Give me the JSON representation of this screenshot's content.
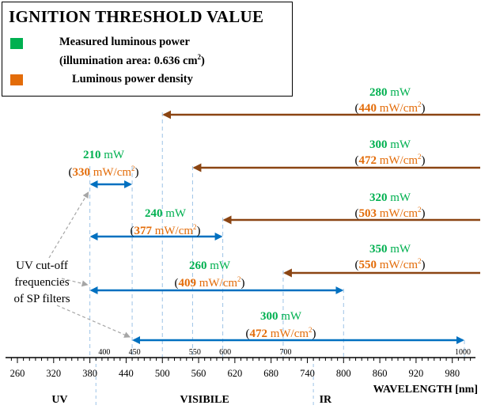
{
  "legend": {
    "title": "IGNITION THRESHOLD VALUE",
    "items": [
      {
        "label_line1": "Measured luminous power",
        "label_line2_prefix": "(illumination area: 0.636 cm",
        "label_line2_suffix": ")",
        "sup": "2",
        "color": "#00b050"
      },
      {
        "label_line1": "Luminous power density",
        "color": "#e36c09"
      }
    ]
  },
  "colors": {
    "power": "#00b050",
    "density": "#e36c09",
    "brown_arrow": "#8b4513",
    "blue_arrow": "#0070c0",
    "dashed": "#9dc3e6"
  },
  "annotation": [
    "UV cut-off",
    "frequencies",
    "of SP filters"
  ],
  "axis": {
    "title": "WAVELENGTH",
    "unit": "[nm]",
    "min": 260,
    "max": 1000,
    "ticks": [
      260,
      320,
      380,
      440,
      500,
      560,
      620,
      680,
      740,
      800,
      860,
      920,
      980
    ],
    "upper_labels": [
      400,
      450,
      550,
      600,
      700,
      1000
    ],
    "regions": [
      {
        "name": "UV",
        "center": 330
      },
      {
        "name": "VISIBILE",
        "center": 570
      },
      {
        "name": "IR",
        "center": 770
      }
    ],
    "boundaries": [
      390,
      750
    ]
  },
  "chart_data": {
    "type": "range-diagram",
    "title": "IGNITION THRESHOLD VALUE",
    "xlabel": "WAVELENGTH [nm]",
    "xlim": [
      260,
      1000
    ],
    "density_unit": "mW/cm",
    "density_unit_sup": "2",
    "long_pass": [
      {
        "start": 500,
        "power": 280,
        "power_unit": "mW",
        "density": 440
      },
      {
        "start": 550,
        "power": 300,
        "power_unit": "mW",
        "density": 472
      },
      {
        "start": 600,
        "power": 320,
        "power_unit": "mW",
        "density": 503
      },
      {
        "start": 700,
        "power": 350,
        "power_unit": "mW",
        "density": 550
      }
    ],
    "band_pass": [
      {
        "start": 380,
        "end": 450,
        "power": 210,
        "power_unit": "mW",
        "density": 330
      },
      {
        "start": 380,
        "end": 600,
        "power": 240,
        "power_unit": "mW",
        "density": 377
      },
      {
        "start": 380,
        "end": 800,
        "power": 260,
        "power_unit": "mW",
        "density": 409
      },
      {
        "start": 450,
        "end": 1000,
        "power": 300,
        "power_unit": "mW",
        "density": 472
      }
    ]
  }
}
